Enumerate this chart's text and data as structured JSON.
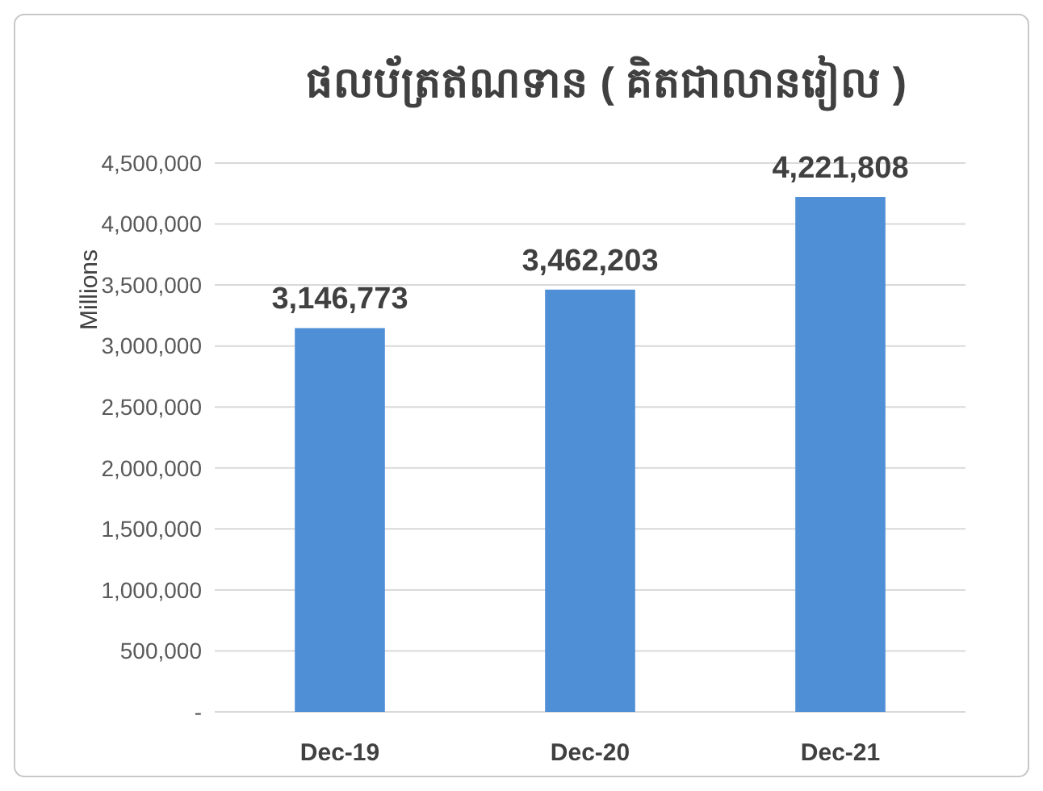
{
  "chart_data": {
    "type": "bar",
    "title": "ផលប័ត្រឥណទាន ( គិតជាលានរៀល )",
    "ylabel": "Millions",
    "categories": [
      "Dec-19",
      "Dec-20",
      "Dec-21"
    ],
    "values": [
      3146773,
      3462203,
      4221808
    ],
    "color": "#4f8fd6",
    "value_labels": [
      "3,146,773",
      "3,462,203",
      "4,221,808"
    ],
    "ylim": [
      0,
      4500000
    ],
    "yticks": [
      {
        "value": 0,
        "label": "-"
      },
      {
        "value": 500000,
        "label": "500,000"
      },
      {
        "value": 1000000,
        "label": "1,000,000"
      },
      {
        "value": 1500000,
        "label": "1,500,000"
      },
      {
        "value": 2000000,
        "label": "2,000,000"
      },
      {
        "value": 2500000,
        "label": "2,500,000"
      },
      {
        "value": 3000000,
        "label": "3,000,000"
      },
      {
        "value": 3500000,
        "label": "3,500,000"
      },
      {
        "value": 4000000,
        "label": "4,000,000"
      },
      {
        "value": 4500000,
        "label": "4,500,000"
      }
    ],
    "grid": "y"
  }
}
